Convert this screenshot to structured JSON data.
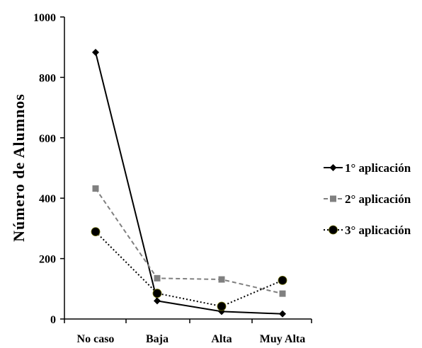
{
  "chart_data": {
    "type": "line",
    "ylabel": "Número de Alumnos",
    "categories": [
      "No caso",
      "Baja",
      "Alta",
      "Muy Alta"
    ],
    "ylim": [
      0,
      1000
    ],
    "yticks": [
      "0",
      "200",
      "400",
      "600",
      "800",
      "1000"
    ],
    "grid": false,
    "legend_position": "right",
    "series": [
      {
        "name": "1° aplicación",
        "values": [
          883,
          60,
          25,
          17
        ],
        "color": "#000000",
        "line_style": "solid",
        "marker": "diamond"
      },
      {
        "name": "2° aplicación",
        "values": [
          432,
          135,
          131,
          84
        ],
        "color": "#808080",
        "line_style": "dashed",
        "marker": "square"
      },
      {
        "name": "3° aplicación",
        "values": [
          289,
          85,
          42,
          128
        ],
        "color": "#000000",
        "line_style": "dotted",
        "marker": "circle"
      }
    ]
  }
}
